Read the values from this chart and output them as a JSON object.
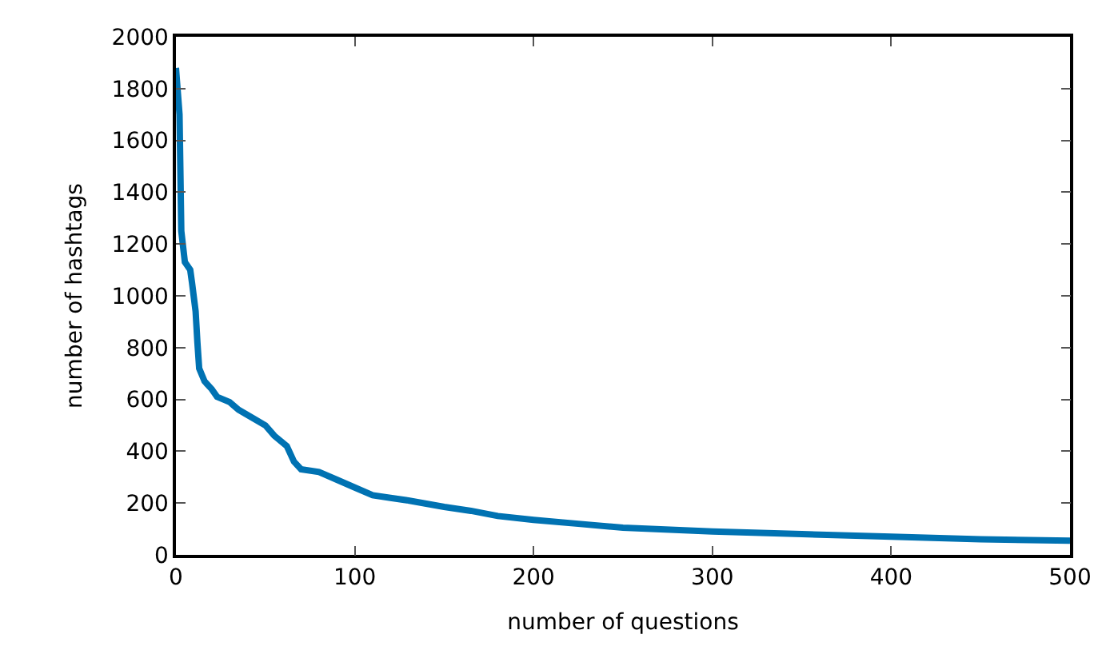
{
  "chart_data": {
    "type": "line",
    "xlabel": "number of questions",
    "ylabel": "number of hashtags",
    "xlim": [
      0,
      500
    ],
    "xticks": [
      0,
      100,
      200,
      300,
      400,
      500
    ],
    "ylim": [
      0,
      2000
    ],
    "yticks": [
      0,
      200,
      400,
      600,
      800,
      1000,
      1200,
      1400,
      1600,
      1800,
      2000
    ],
    "marker": "none",
    "line_style": "solid",
    "series": [
      {
        "color": "#0072b2",
        "x": [
          0,
          2,
          3,
          5,
          8,
          9,
          11,
          12,
          13,
          16,
          20,
          23,
          30,
          35,
          40,
          50,
          55,
          62,
          66,
          70,
          80,
          90,
          100,
          110,
          120,
          130,
          150,
          165,
          180,
          200,
          225,
          250,
          300,
          350,
          400,
          450,
          500
        ],
        "values": [
          1880,
          1700,
          1250,
          1130,
          1100,
          1050,
          940,
          820,
          720,
          670,
          640,
          610,
          590,
          560,
          540,
          500,
          460,
          420,
          360,
          330,
          320,
          290,
          260,
          230,
          220,
          210,
          185,
          170,
          150,
          135,
          120,
          105,
          90,
          80,
          70,
          60,
          55
        ]
      }
    ]
  }
}
